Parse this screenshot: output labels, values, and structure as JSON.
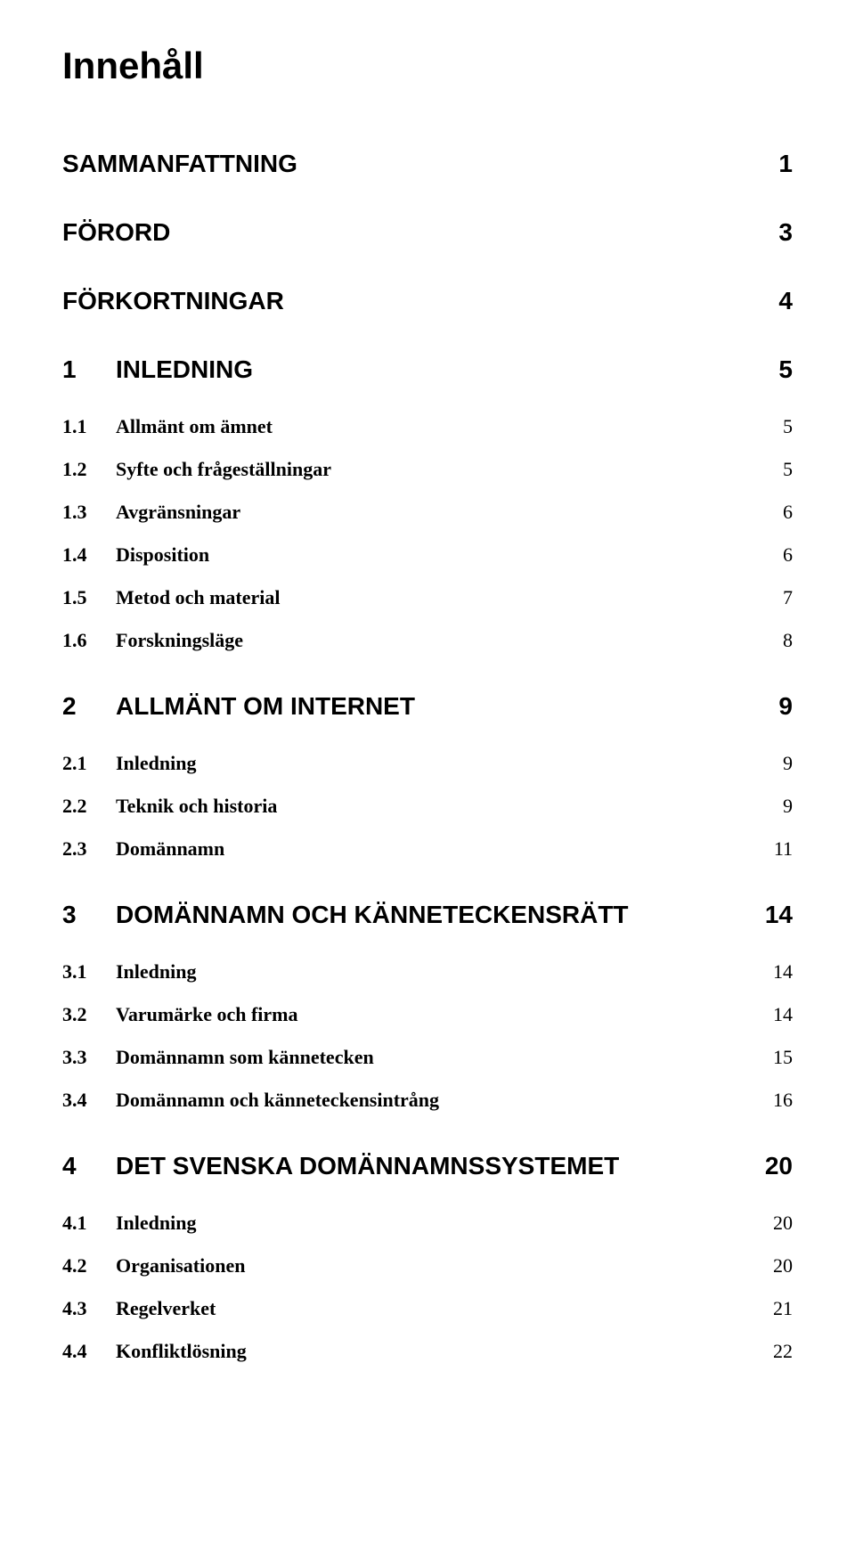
{
  "title": "Innehåll",
  "sections": [
    {
      "label": "SAMMANFATTNING",
      "page": "1",
      "subs": []
    },
    {
      "label": "FÖRORD",
      "page": "3",
      "subs": []
    },
    {
      "label": "FÖRKORTNINGAR",
      "page": "4",
      "subs": []
    },
    {
      "num": "1",
      "label": "INLEDNING",
      "page": "5",
      "subs": [
        {
          "num": "1.1",
          "label": "Allmänt om ämnet",
          "page": "5"
        },
        {
          "num": "1.2",
          "label": "Syfte och frågeställningar",
          "page": "5"
        },
        {
          "num": "1.3",
          "label": "Avgränsningar",
          "page": "6"
        },
        {
          "num": "1.4",
          "label": "Disposition",
          "page": "6"
        },
        {
          "num": "1.5",
          "label": "Metod och material",
          "page": "7"
        },
        {
          "num": "1.6",
          "label": "Forskningsläge",
          "page": "8"
        }
      ]
    },
    {
      "num": "2",
      "label": "ALLMÄNT OM INTERNET",
      "page": "9",
      "subs": [
        {
          "num": "2.1",
          "label": "Inledning",
          "page": "9"
        },
        {
          "num": "2.2",
          "label": "Teknik och historia",
          "page": "9"
        },
        {
          "num": "2.3",
          "label": "Domännamn",
          "page": "11"
        }
      ]
    },
    {
      "num": "3",
      "label": "DOMÄNNAMN OCH KÄNNETECKENSRÄTT",
      "page": "14",
      "subs": [
        {
          "num": "3.1",
          "label": "Inledning",
          "page": "14"
        },
        {
          "num": "3.2",
          "label": "Varumärke och firma",
          "page": "14"
        },
        {
          "num": "3.3",
          "label": "Domännamn som kännetecken",
          "page": "15"
        },
        {
          "num": "3.4",
          "label": "Domännamn och känneteckensintrång",
          "page": "16"
        }
      ]
    },
    {
      "num": "4",
      "label": "DET SVENSKA DOMÄNNAMNSSYSTEMET",
      "page": "20",
      "subs": [
        {
          "num": "4.1",
          "label": "Inledning",
          "page": "20"
        },
        {
          "num": "4.2",
          "label": "Organisationen",
          "page": "20"
        },
        {
          "num": "4.3",
          "label": "Regelverket",
          "page": "21"
        },
        {
          "num": "4.4",
          "label": "Konfliktlösning",
          "page": "22"
        }
      ]
    }
  ]
}
